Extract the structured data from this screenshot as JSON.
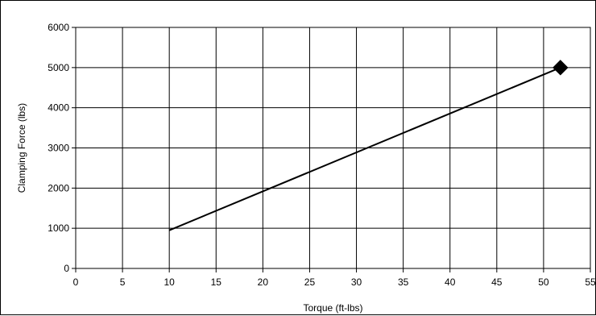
{
  "chart_data": {
    "type": "line",
    "title": "",
    "xlabel": "Torque (ft-lbs)",
    "ylabel": "Clamping Force (lbs)",
    "xlim": [
      0,
      55
    ],
    "ylim": [
      0,
      6000
    ],
    "x_ticks": [
      0,
      5,
      10,
      15,
      20,
      25,
      30,
      35,
      40,
      45,
      50,
      55
    ],
    "y_ticks": [
      0,
      1000,
      2000,
      3000,
      4000,
      5000,
      6000
    ],
    "grid": true,
    "legend": "none",
    "series": [
      {
        "x": [
          10,
          51.8
        ],
        "y": [
          950,
          5000
        ],
        "color": "#000000",
        "end_marker": "diamond"
      }
    ]
  }
}
